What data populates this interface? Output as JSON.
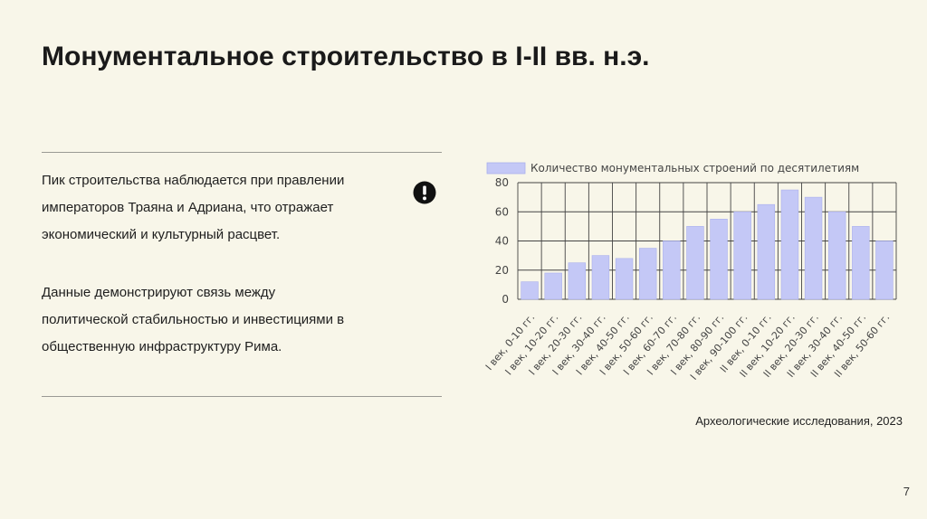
{
  "slide": {
    "title": "Монументальное строительство в I-II вв. н.э.",
    "paragraph1": "Пик строительства наблюдается при правлении\nимператоров Траяна и Адриана, что отражает\nэкономический и культурный расцвет.",
    "paragraph2": "Данные демонстрируют связь между\nполитической стабильностью и инвестициями в\nобщественную инфраструктуру Рима.",
    "icon": "exclamation-circle-icon",
    "source": "Археологические исследования, 2023",
    "page_number": "7"
  },
  "colors": {
    "background": "#f8f6e9",
    "bar": "#c4c8f6",
    "bar_stroke": "#aab0ee",
    "grid": "#444444"
  },
  "chart_data": {
    "type": "bar",
    "title": "",
    "xlabel": "",
    "ylabel": "",
    "ylim": [
      0,
      80
    ],
    "yticks": [
      0,
      20,
      40,
      60,
      80
    ],
    "grid": true,
    "legend_position": "top",
    "categories": [
      "I век, 0-10 гг.",
      "I век, 10-20 гг.",
      "I век, 20-30 гг.",
      "I век, 30-40 гг.",
      "I век, 40-50 гг.",
      "I век, 50-60 гг.",
      "I век, 60-70 гг.",
      "I век, 70-80 гг.",
      "I век, 80-90 гг.",
      "I век, 90-100 гг.",
      "II век, 0-10 гг.",
      "II век, 10-20 гг.",
      "II век, 20-30 гг.",
      "II век, 30-40 гг.",
      "II век, 40-50 гг.",
      "II век, 50-60 гг."
    ],
    "series": [
      {
        "name": "Количество монументальных строений по десятилетиям",
        "values": [
          12,
          18,
          25,
          30,
          28,
          35,
          40,
          50,
          55,
          60,
          65,
          75,
          70,
          60,
          50,
          40
        ]
      }
    ]
  }
}
